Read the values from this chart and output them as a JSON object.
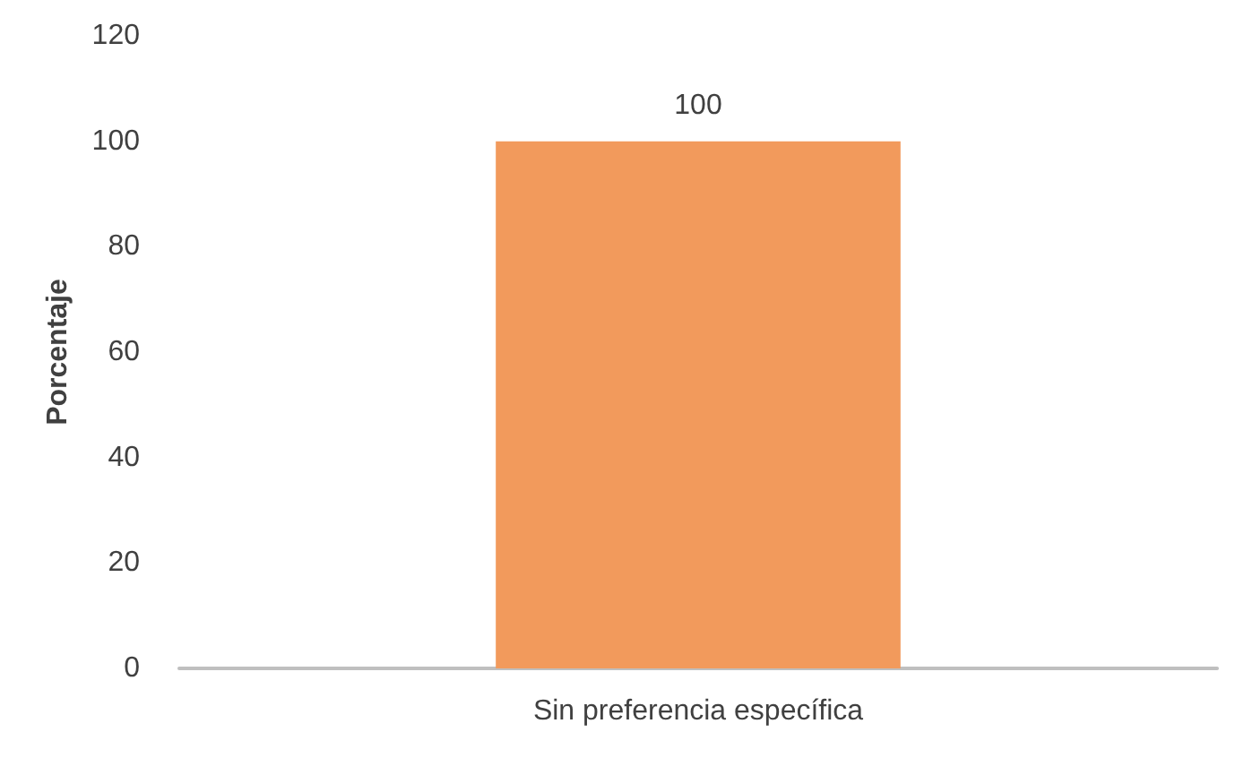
{
  "chart_data": {
    "type": "bar",
    "ylabel": "Porcentaje",
    "categories": [
      "Sin preferencia específica"
    ],
    "values": [
      100
    ],
    "color": "#f29a5c",
    "ylim": [
      0,
      120
    ],
    "yticks": [
      0,
      20,
      40,
      60,
      80,
      100,
      120
    ],
    "grid": false,
    "data_labels": true
  }
}
